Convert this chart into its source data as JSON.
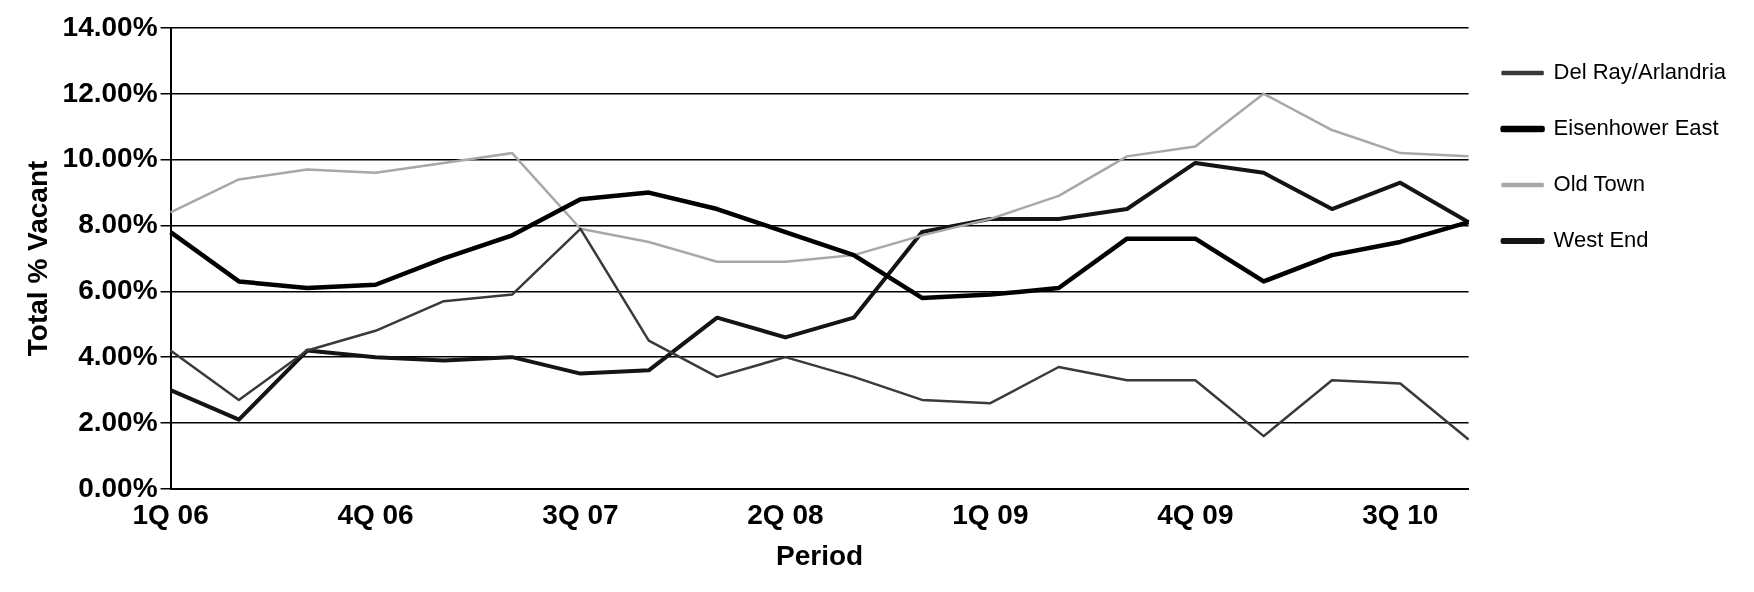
{
  "chart_data": {
    "type": "line",
    "xlabel": "Period",
    "ylabel": "Total % Vacant",
    "categories": [
      "1Q 06",
      null,
      null,
      "4Q 06",
      null,
      null,
      "3Q 07",
      null,
      null,
      "2Q 08",
      null,
      null,
      "1Q 09",
      null,
      null,
      "4Q 09",
      null,
      null,
      "3Q 10",
      null
    ],
    "series": [
      {
        "name": "Del Ray/Arlandria",
        "color": "#3a3a3a",
        "values": [
          4.2,
          2.7,
          4.2,
          4.8,
          5.7,
          5.9,
          7.9,
          4.5,
          3.4,
          4.0,
          3.4,
          2.7,
          2.6,
          3.7,
          3.3,
          3.3,
          1.6,
          3.3,
          3.2,
          1.5
        ]
      },
      {
        "name": "Eisenhower East",
        "color": "#000000",
        "values": [
          7.8,
          6.3,
          6.1,
          6.2,
          7.0,
          7.7,
          8.8,
          9.0,
          8.5,
          7.8,
          7.1,
          5.8,
          5.9,
          6.1,
          7.6,
          7.6,
          6.3,
          7.1,
          7.5,
          8.1
        ]
      },
      {
        "name": "Old Town",
        "color": "#a8a8a8",
        "values": [
          8.4,
          9.4,
          9.7,
          9.6,
          9.9,
          10.2,
          7.9,
          7.5,
          6.9,
          6.9,
          7.1,
          7.7,
          8.2,
          8.9,
          10.1,
          10.4,
          12.0,
          10.9,
          10.2,
          10.1
        ]
      },
      {
        "name": "West End",
        "color": "#141414",
        "values": [
          3.0,
          2.1,
          4.2,
          4.0,
          3.9,
          4.0,
          3.5,
          3.6,
          5.2,
          4.6,
          5.2,
          7.8,
          8.2,
          8.2,
          8.5,
          9.9,
          9.6,
          8.5,
          9.3,
          8.1
        ]
      }
    ],
    "ylim": [
      0,
      14
    ],
    "yticks": [
      {
        "value": 0,
        "label": "0.00%"
      },
      {
        "value": 2,
        "label": "2.00%"
      },
      {
        "value": 4,
        "label": "4.00%"
      },
      {
        "value": 6,
        "label": "6.00%"
      },
      {
        "value": 8,
        "label": "8.00%"
      },
      {
        "value": 10,
        "label": "10.00%"
      },
      {
        "value": 12,
        "label": "12.00%"
      },
      {
        "value": 14,
        "label": "14.00%"
      }
    ],
    "grid": "y",
    "legend": "right",
    "marker": "none",
    "line_style": "solid"
  }
}
